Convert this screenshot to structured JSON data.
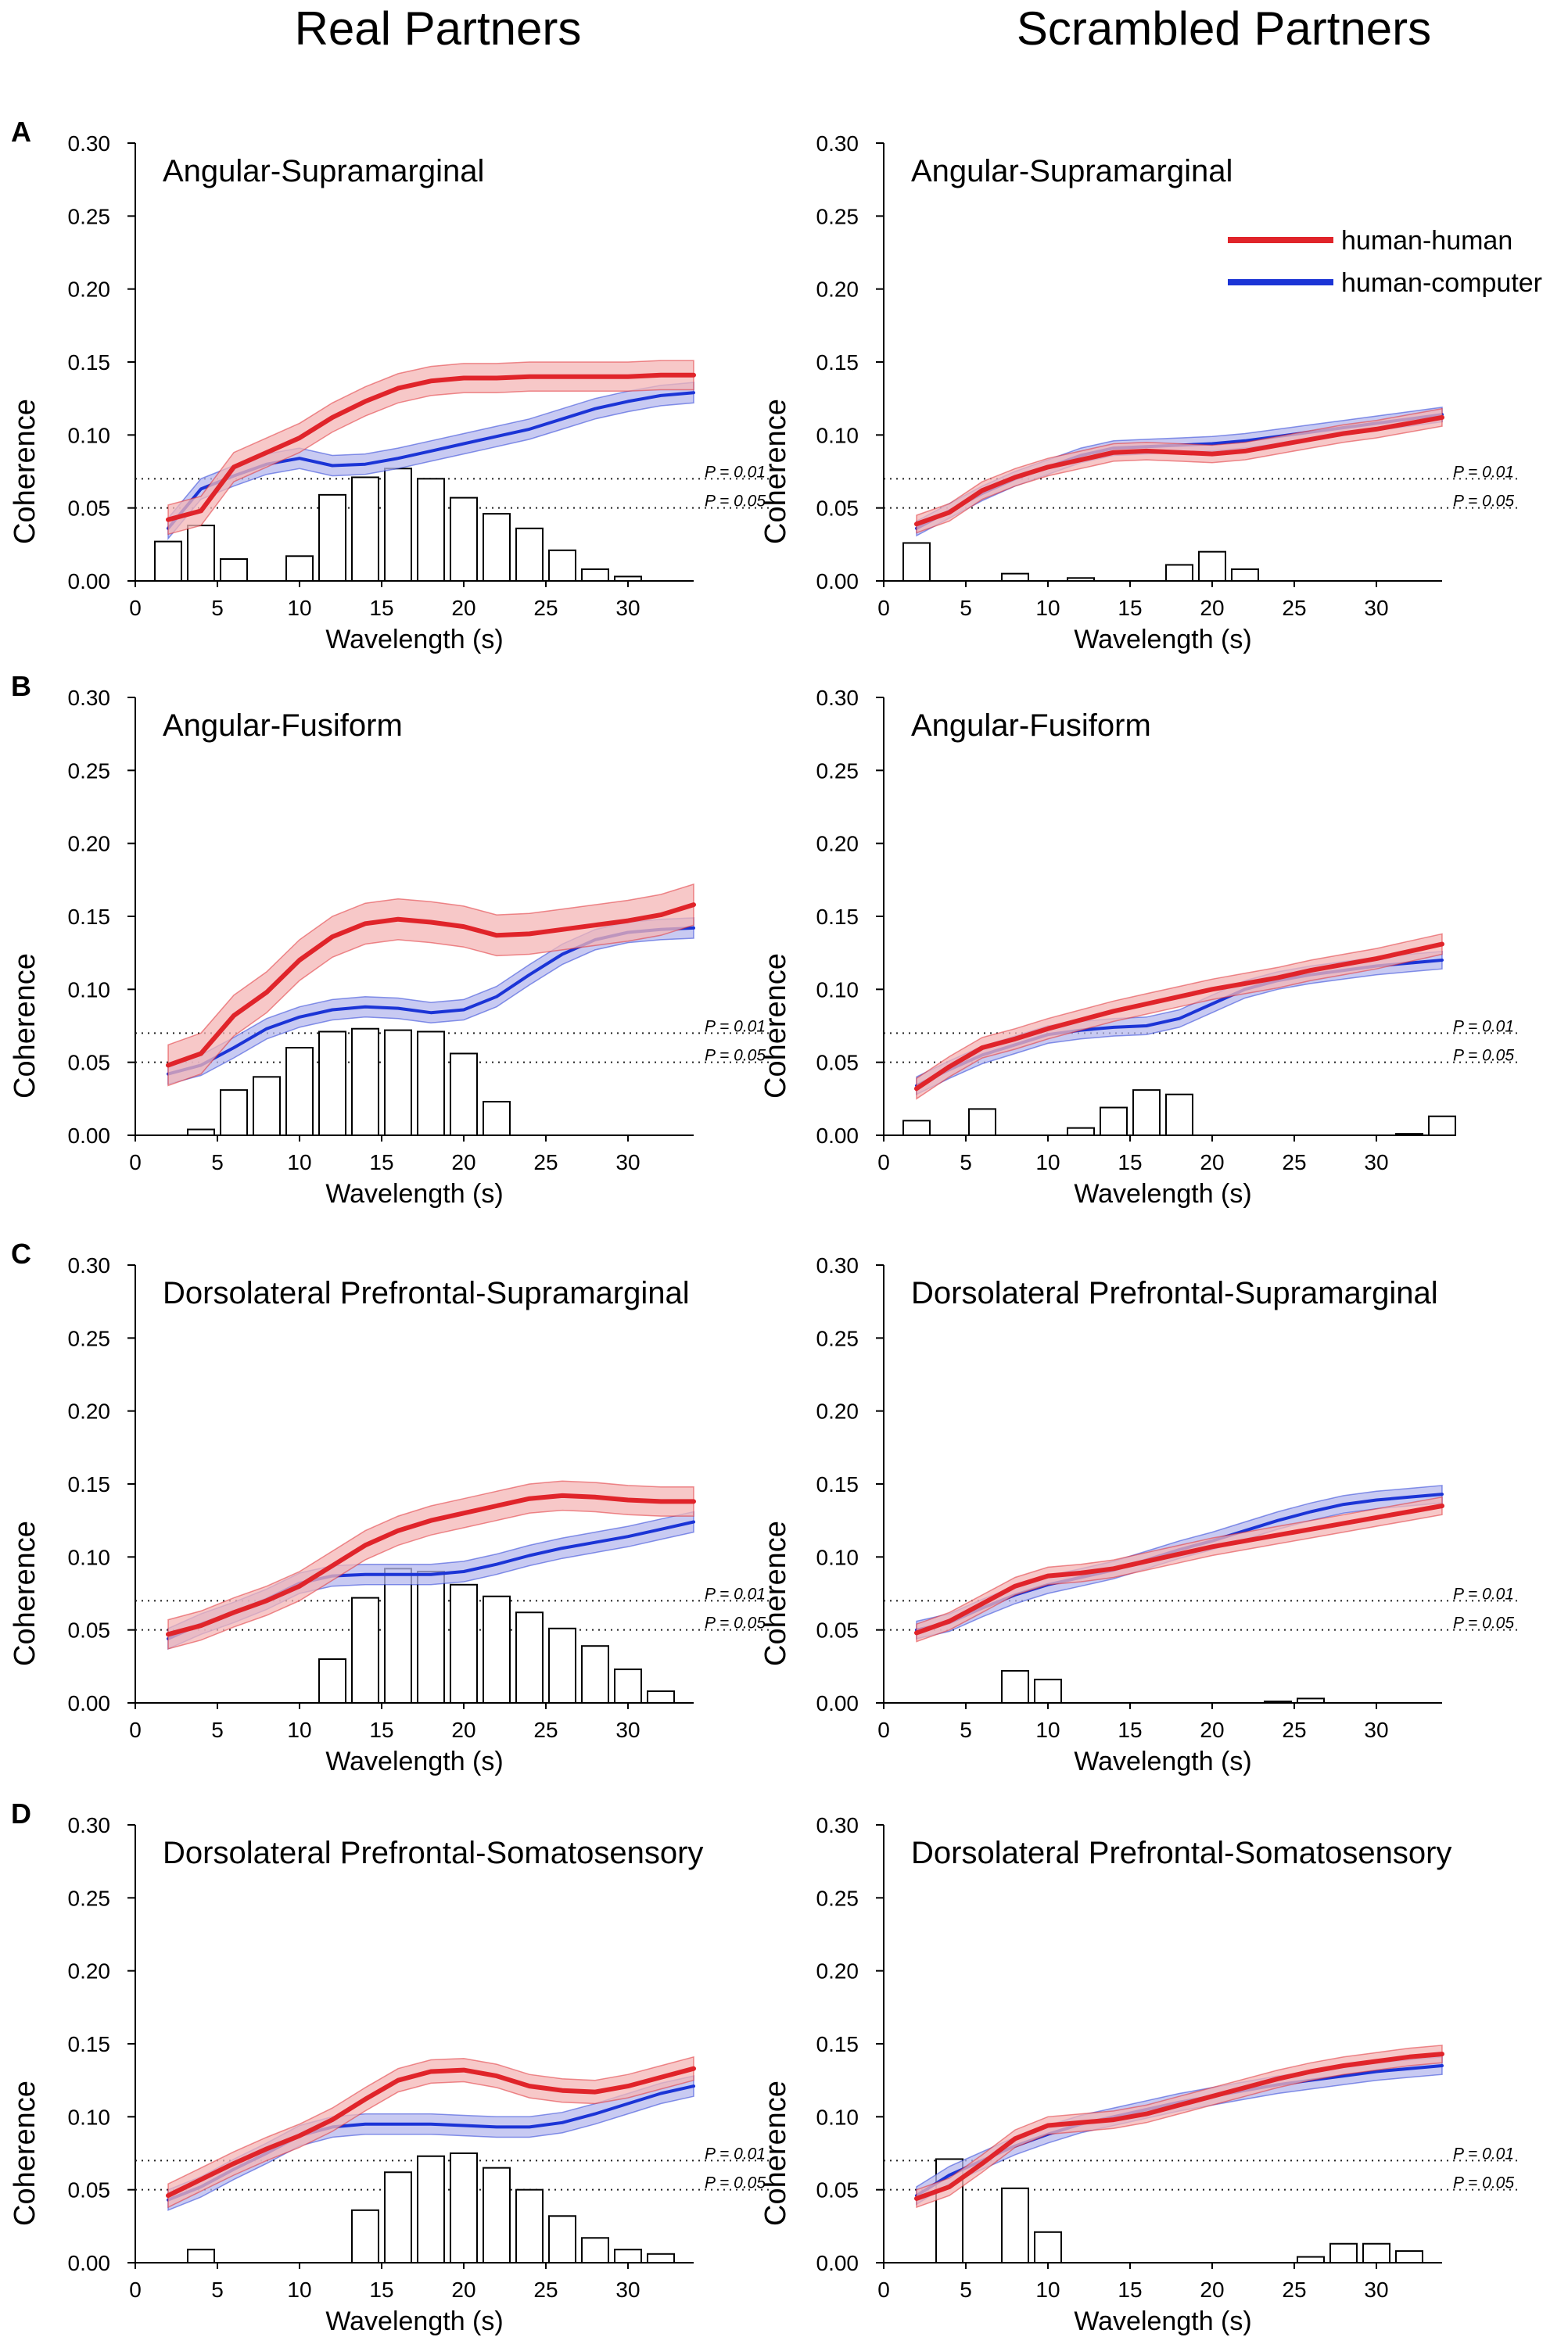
{
  "column_titles": [
    "Real Partners",
    "Scrambled Partners"
  ],
  "common": {
    "xlabel": "Wavelength (s)",
    "ylabel": "Coherence",
    "xticks": [
      0,
      5,
      10,
      15,
      20,
      25,
      30
    ],
    "yticks": [
      "0.00",
      "0.05",
      "0.10",
      "0.15",
      "0.20",
      "0.25",
      "0.30"
    ],
    "xlim": [
      0,
      34
    ],
    "ylim": [
      0,
      0.3
    ],
    "threshold_labels": [
      "P = 0.01",
      "P = 0.05"
    ],
    "thresholds": [
      0.07,
      0.05
    ],
    "legend": [
      {
        "name": "human-human",
        "color": "#e0242a"
      },
      {
        "name": "human-computer",
        "color": "#1b34d6"
      }
    ],
    "colors": {
      "hh": "#e0242a",
      "hh_band": "#f4b6b6",
      "hc": "#1b34d6",
      "hc_band": "#b5b8ee"
    }
  },
  "chart_data": [
    {
      "type": "line",
      "panel": "A",
      "column": "Real Partners",
      "title": "Angular-Supramarginal",
      "x": [
        2,
        4,
        6,
        8,
        10,
        12,
        14,
        16,
        18,
        20,
        22,
        24,
        26,
        28,
        30,
        32,
        34
      ],
      "series": [
        {
          "name": "human-human",
          "values": [
            0.042,
            0.048,
            0.078,
            0.088,
            0.098,
            0.112,
            0.123,
            0.132,
            0.137,
            0.139,
            0.139,
            0.14,
            0.14,
            0.14,
            0.14,
            0.141,
            0.141
          ],
          "band": 0.01
        },
        {
          "name": "human-computer",
          "values": [
            0.036,
            0.063,
            0.072,
            0.08,
            0.084,
            0.079,
            0.08,
            0.084,
            0.089,
            0.094,
            0.099,
            0.104,
            0.111,
            0.118,
            0.123,
            0.127,
            0.129
          ],
          "band": 0.007
        }
      ],
      "bars": {
        "x": [
          2,
          4,
          6,
          8,
          10,
          12,
          14,
          16,
          18,
          20,
          22,
          24,
          26,
          28,
          30,
          32,
          34
        ],
        "values": [
          0.027,
          0.038,
          0.015,
          0,
          0.017,
          0.059,
          0.071,
          0.077,
          0.07,
          0.057,
          0.046,
          0.036,
          0.021,
          0.008,
          0.003,
          0,
          0
        ]
      }
    },
    {
      "type": "line",
      "panel": "",
      "column": "Scrambled Partners",
      "title": "Angular-Supramarginal",
      "x": [
        2,
        4,
        6,
        8,
        10,
        12,
        14,
        16,
        18,
        20,
        22,
        24,
        26,
        28,
        30,
        32,
        34
      ],
      "series": [
        {
          "name": "human-human",
          "values": [
            0.039,
            0.047,
            0.062,
            0.071,
            0.078,
            0.083,
            0.088,
            0.089,
            0.088,
            0.087,
            0.089,
            0.093,
            0.097,
            0.101,
            0.104,
            0.108,
            0.112
          ],
          "band": 0.006
        },
        {
          "name": "human-computer",
          "values": [
            0.036,
            0.048,
            0.06,
            0.07,
            0.078,
            0.086,
            0.091,
            0.092,
            0.093,
            0.094,
            0.096,
            0.099,
            0.102,
            0.105,
            0.108,
            0.111,
            0.114
          ],
          "band": 0.005
        }
      ],
      "bars": {
        "x": [
          2,
          4,
          6,
          8,
          10,
          12,
          14,
          16,
          18,
          20,
          22,
          24,
          26,
          28,
          30,
          32,
          34
        ],
        "values": [
          0.026,
          0,
          0,
          0.005,
          0,
          0.002,
          0,
          0,
          0.011,
          0.02,
          0.008,
          0,
          0,
          0,
          0,
          0,
          0
        ]
      }
    },
    {
      "type": "line",
      "panel": "B",
      "column": "Real Partners",
      "title": "Angular-Fusiform",
      "x": [
        2,
        4,
        6,
        8,
        10,
        12,
        14,
        16,
        18,
        20,
        22,
        24,
        26,
        28,
        30,
        32,
        34
      ],
      "series": [
        {
          "name": "human-human",
          "values": [
            0.048,
            0.056,
            0.082,
            0.098,
            0.12,
            0.136,
            0.145,
            0.148,
            0.146,
            0.143,
            0.137,
            0.138,
            0.141,
            0.144,
            0.147,
            0.151,
            0.158
          ],
          "band": 0.014
        },
        {
          "name": "human-computer",
          "values": [
            0.042,
            0.048,
            0.06,
            0.073,
            0.081,
            0.086,
            0.088,
            0.087,
            0.084,
            0.086,
            0.095,
            0.11,
            0.124,
            0.134,
            0.139,
            0.141,
            0.142
          ],
          "band": 0.007
        }
      ],
      "bars": {
        "x": [
          2,
          4,
          6,
          8,
          10,
          12,
          14,
          16,
          18,
          20,
          22,
          24,
          26,
          28,
          30,
          32,
          34
        ],
        "values": [
          0,
          0.004,
          0.031,
          0.04,
          0.06,
          0.071,
          0.073,
          0.072,
          0.071,
          0.056,
          0.023,
          0,
          0,
          0,
          0,
          0,
          0
        ]
      }
    },
    {
      "type": "line",
      "panel": "",
      "column": "Scrambled Partners",
      "title": "Angular-Fusiform",
      "x": [
        2,
        4,
        6,
        8,
        10,
        12,
        14,
        16,
        18,
        20,
        22,
        24,
        26,
        28,
        30,
        32,
        34
      ],
      "series": [
        {
          "name": "human-human",
          "values": [
            0.032,
            0.047,
            0.06,
            0.066,
            0.073,
            0.079,
            0.085,
            0.09,
            0.095,
            0.1,
            0.104,
            0.108,
            0.113,
            0.117,
            0.121,
            0.126,
            0.131
          ],
          "band": 0.007
        },
        {
          "name": "human-computer",
          "values": [
            0.034,
            0.045,
            0.055,
            0.062,
            0.069,
            0.072,
            0.074,
            0.075,
            0.08,
            0.09,
            0.1,
            0.106,
            0.11,
            0.113,
            0.116,
            0.118,
            0.12
          ],
          "band": 0.006
        }
      ],
      "bars": {
        "x": [
          2,
          4,
          6,
          8,
          10,
          12,
          14,
          16,
          18,
          20,
          22,
          24,
          26,
          28,
          30,
          32,
          34
        ],
        "values": [
          0.01,
          0,
          0.018,
          0,
          0,
          0.005,
          0.019,
          0.031,
          0.028,
          0,
          0,
          0,
          0,
          0,
          0,
          0.001,
          0.013
        ]
      }
    },
    {
      "type": "line",
      "panel": "C",
      "column": "Real Partners",
      "title": "Dorsolateral Prefrontal-Supramarginal",
      "x": [
        2,
        4,
        6,
        8,
        10,
        12,
        14,
        16,
        18,
        20,
        22,
        24,
        26,
        28,
        30,
        32,
        34
      ],
      "series": [
        {
          "name": "human-human",
          "values": [
            0.047,
            0.053,
            0.062,
            0.07,
            0.08,
            0.094,
            0.108,
            0.118,
            0.125,
            0.13,
            0.135,
            0.14,
            0.142,
            0.141,
            0.139,
            0.138,
            0.138
          ],
          "band": 0.01
        },
        {
          "name": "human-computer",
          "values": [
            0.044,
            0.054,
            0.062,
            0.071,
            0.082,
            0.087,
            0.088,
            0.088,
            0.088,
            0.09,
            0.095,
            0.101,
            0.106,
            0.11,
            0.114,
            0.119,
            0.124
          ],
          "band": 0.007
        }
      ],
      "bars": {
        "x": [
          2,
          4,
          6,
          8,
          10,
          12,
          14,
          16,
          18,
          20,
          22,
          24,
          26,
          28,
          30,
          32,
          34
        ],
        "values": [
          0,
          0,
          0,
          0,
          0,
          0.03,
          0.072,
          0.092,
          0.09,
          0.081,
          0.073,
          0.062,
          0.051,
          0.039,
          0.023,
          0.008,
          0
        ]
      }
    },
    {
      "type": "line",
      "panel": "",
      "column": "Scrambled Partners",
      "title": "Dorsolateral Prefrontal-Supramarginal",
      "x": [
        2,
        4,
        6,
        8,
        10,
        12,
        14,
        16,
        18,
        20,
        22,
        24,
        26,
        28,
        30,
        32,
        34
      ],
      "series": [
        {
          "name": "human-human",
          "values": [
            0.048,
            0.056,
            0.068,
            0.08,
            0.087,
            0.089,
            0.092,
            0.097,
            0.102,
            0.107,
            0.111,
            0.115,
            0.119,
            0.123,
            0.127,
            0.131,
            0.135
          ],
          "band": 0.006
        },
        {
          "name": "human-computer",
          "values": [
            0.05,
            0.055,
            0.065,
            0.074,
            0.081,
            0.086,
            0.091,
            0.098,
            0.105,
            0.111,
            0.118,
            0.125,
            0.131,
            0.136,
            0.139,
            0.141,
            0.143
          ],
          "band": 0.006
        }
      ],
      "bars": {
        "x": [
          2,
          4,
          6,
          8,
          10,
          12,
          14,
          16,
          18,
          20,
          22,
          24,
          26,
          28,
          30,
          32,
          34
        ],
        "values": [
          0,
          0,
          0,
          0.022,
          0.016,
          0,
          0,
          0,
          0,
          0,
          0,
          0.001,
          0.003,
          0,
          0,
          0,
          0
        ]
      }
    },
    {
      "type": "line",
      "panel": "D",
      "column": "Real Partners",
      "title": "Dorsolateral Prefrontal-Somatosensory",
      "x": [
        2,
        4,
        6,
        8,
        10,
        12,
        14,
        16,
        18,
        20,
        22,
        24,
        26,
        28,
        30,
        32,
        34
      ],
      "series": [
        {
          "name": "human-human",
          "values": [
            0.046,
            0.057,
            0.068,
            0.078,
            0.087,
            0.098,
            0.112,
            0.125,
            0.131,
            0.132,
            0.128,
            0.121,
            0.118,
            0.117,
            0.121,
            0.127,
            0.133
          ],
          "band": 0.008
        },
        {
          "name": "human-computer",
          "values": [
            0.043,
            0.052,
            0.064,
            0.075,
            0.087,
            0.093,
            0.095,
            0.095,
            0.095,
            0.094,
            0.093,
            0.093,
            0.096,
            0.102,
            0.109,
            0.116,
            0.121
          ],
          "band": 0.007
        }
      ],
      "bars": {
        "x": [
          2,
          4,
          6,
          8,
          10,
          12,
          14,
          16,
          18,
          20,
          22,
          24,
          26,
          28,
          30,
          32,
          34
        ],
        "values": [
          0,
          0.009,
          0,
          0,
          0,
          0,
          0.036,
          0.062,
          0.073,
          0.075,
          0.065,
          0.05,
          0.032,
          0.017,
          0.009,
          0.006,
          0
        ]
      }
    },
    {
      "type": "line",
      "panel": "",
      "column": "Scrambled Partners",
      "title": "Dorsolateral Prefrontal-Somatosensory",
      "x": [
        2,
        4,
        6,
        8,
        10,
        12,
        14,
        16,
        18,
        20,
        22,
        24,
        26,
        28,
        30,
        32,
        34
      ],
      "series": [
        {
          "name": "human-human",
          "values": [
            0.044,
            0.052,
            0.068,
            0.085,
            0.094,
            0.096,
            0.098,
            0.102,
            0.108,
            0.114,
            0.12,
            0.126,
            0.131,
            0.135,
            0.138,
            0.141,
            0.143
          ],
          "band": 0.006
        },
        {
          "name": "human-computer",
          "values": [
            0.046,
            0.06,
            0.07,
            0.08,
            0.088,
            0.095,
            0.1,
            0.105,
            0.11,
            0.114,
            0.118,
            0.122,
            0.125,
            0.128,
            0.131,
            0.133,
            0.135
          ],
          "band": 0.006
        }
      ],
      "bars": {
        "x": [
          2,
          4,
          6,
          8,
          10,
          12,
          14,
          16,
          18,
          20,
          22,
          24,
          26,
          28,
          30,
          32,
          34
        ],
        "values": [
          0,
          0.071,
          0,
          0.051,
          0.021,
          0,
          0,
          0,
          0,
          0,
          0,
          0,
          0.004,
          0.013,
          0.013,
          0.008,
          0
        ]
      }
    }
  ]
}
